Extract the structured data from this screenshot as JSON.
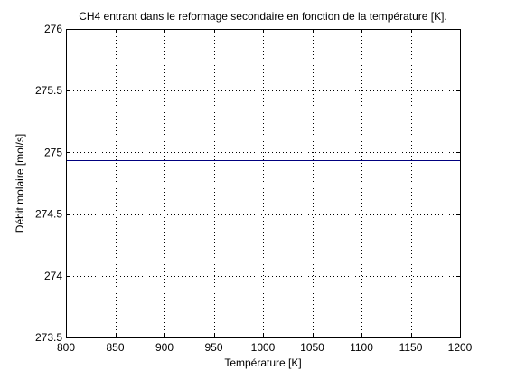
{
  "chart_data": {
    "type": "line",
    "title": "CH4 entrant dans le reformage secondaire en fonction de la température [K].",
    "xlabel": "Température [K]",
    "ylabel": "Débit molaire [mol/s]",
    "xlim": [
      800,
      1200
    ],
    "ylim": [
      273.5,
      276
    ],
    "xticks": [
      800,
      850,
      900,
      950,
      1000,
      1050,
      1100,
      1150,
      1200
    ],
    "yticks": [
      273.5,
      274,
      274.5,
      275,
      275.5,
      276
    ],
    "xtick_labels": [
      "800",
      "850",
      "900",
      "950",
      "1000",
      "1050",
      "1100",
      "1150",
      "1200"
    ],
    "ytick_labels": [
      "273.5",
      "274",
      "274.5",
      "275",
      "275.5",
      "276"
    ],
    "grid": true,
    "series": [
      {
        "x": [
          800,
          1200
        ],
        "values": [
          274.94,
          274.94
        ],
        "color": "#00007f"
      }
    ]
  }
}
